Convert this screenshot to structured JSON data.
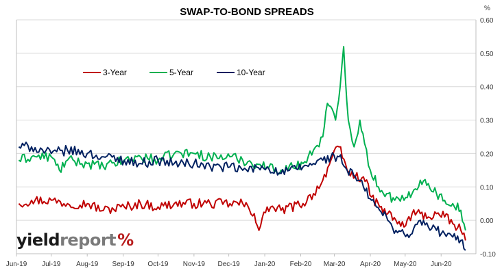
{
  "chart_data": {
    "type": "line",
    "title": "SWAP-TO-BOND SPREADS",
    "y_unit": "%",
    "ylim": [
      -0.1,
      0.6
    ],
    "y_ticks": [
      "0.60",
      "0.50",
      "0.40",
      "0.30",
      "0.20",
      "0.10",
      "0.00",
      "-0.10"
    ],
    "x_ticks": [
      "Jun-19",
      "Jul-19",
      "Aug-19",
      "Sep-19",
      "Oct-19",
      "Nov-19",
      "Dec-19",
      "Jan-20",
      "Feb-20",
      "Mar-20",
      "Apr-20",
      "May-20",
      "Jun-20"
    ],
    "x_dates": [
      "2019-06",
      "2019-07",
      "2019-08",
      "2019-09",
      "2019-10",
      "2019-11",
      "2019-12",
      "2020-01",
      "2020-02",
      "2020-03",
      "2020-04",
      "2020-05",
      "2020-06"
    ],
    "grid": "horizontal-major",
    "legend_position": "top-left",
    "series": [
      {
        "name": "3-Year",
        "color": "#c00000",
        "points": [
          [
            "2019-06-03",
            0.05
          ],
          [
            "2019-06-14",
            0.06
          ],
          [
            "2019-07-01",
            0.06
          ],
          [
            "2019-07-15",
            0.05
          ],
          [
            "2019-08-01",
            0.05
          ],
          [
            "2019-08-15",
            0.03
          ],
          [
            "2019-09-02",
            0.04
          ],
          [
            "2019-09-16",
            0.05
          ],
          [
            "2019-10-01",
            0.04
          ],
          [
            "2019-10-15",
            0.05
          ],
          [
            "2019-11-01",
            0.05
          ],
          [
            "2019-11-15",
            0.05
          ],
          [
            "2019-12-02",
            0.05
          ],
          [
            "2019-12-13",
            0.05
          ],
          [
            "2019-12-23",
            0.02
          ],
          [
            "2019-12-27",
            -0.03
          ],
          [
            "2020-01-03",
            0.04
          ],
          [
            "2020-01-15",
            0.03
          ],
          [
            "2020-02-03",
            0.05
          ],
          [
            "2020-02-12",
            0.08
          ],
          [
            "2020-02-20",
            0.12
          ],
          [
            "2020-02-27",
            0.18
          ],
          [
            "2020-03-05",
            0.22
          ],
          [
            "2020-03-12",
            0.15
          ],
          [
            "2020-03-19",
            0.13
          ],
          [
            "2020-03-26",
            0.13
          ],
          [
            "2020-04-02",
            0.07
          ],
          [
            "2020-04-09",
            0.04
          ],
          [
            "2020-04-16",
            0.02
          ],
          [
            "2020-04-23",
            0.0
          ],
          [
            "2020-04-30",
            -0.02
          ],
          [
            "2020-05-07",
            0.02
          ],
          [
            "2020-05-14",
            0.02
          ],
          [
            "2020-05-21",
            0.01
          ],
          [
            "2020-05-28",
            0.02
          ],
          [
            "2020-06-04",
            0.01
          ],
          [
            "2020-06-11",
            -0.01
          ],
          [
            "2020-06-18",
            -0.03
          ],
          [
            "2020-06-22",
            -0.06
          ]
        ]
      },
      {
        "name": "5-Year",
        "color": "#00b050",
        "points": [
          [
            "2019-06-03",
            0.18
          ],
          [
            "2019-06-14",
            0.19
          ],
          [
            "2019-07-01",
            0.19
          ],
          [
            "2019-07-08",
            0.15
          ],
          [
            "2019-07-15",
            0.18
          ],
          [
            "2019-08-01",
            0.17
          ],
          [
            "2019-08-15",
            0.16
          ],
          [
            "2019-09-02",
            0.18
          ],
          [
            "2019-09-16",
            0.19
          ],
          [
            "2019-10-01",
            0.18
          ],
          [
            "2019-10-15",
            0.2
          ],
          [
            "2019-11-01",
            0.2
          ],
          [
            "2019-11-15",
            0.19
          ],
          [
            "2019-12-02",
            0.19
          ],
          [
            "2019-12-13",
            0.18
          ],
          [
            "2020-01-03",
            0.16
          ],
          [
            "2020-01-15",
            0.15
          ],
          [
            "2020-02-03",
            0.17
          ],
          [
            "2020-02-12",
            0.21
          ],
          [
            "2020-02-20",
            0.25
          ],
          [
            "2020-02-24",
            0.35
          ],
          [
            "2020-03-02",
            0.3
          ],
          [
            "2020-03-06",
            0.4
          ],
          [
            "2020-03-09",
            0.52
          ],
          [
            "2020-03-13",
            0.3
          ],
          [
            "2020-03-18",
            0.22
          ],
          [
            "2020-03-23",
            0.3
          ],
          [
            "2020-03-27",
            0.23
          ],
          [
            "2020-04-01",
            0.15
          ],
          [
            "2020-04-08",
            0.1
          ],
          [
            "2020-04-15",
            0.08
          ],
          [
            "2020-04-22",
            0.06
          ],
          [
            "2020-04-30",
            0.06
          ],
          [
            "2020-05-07",
            0.08
          ],
          [
            "2020-05-14",
            0.12
          ],
          [
            "2020-05-21",
            0.11
          ],
          [
            "2020-05-28",
            0.08
          ],
          [
            "2020-06-04",
            0.06
          ],
          [
            "2020-06-11",
            0.05
          ],
          [
            "2020-06-18",
            0.03
          ],
          [
            "2020-06-22",
            -0.03
          ]
        ]
      },
      {
        "name": "10-Year",
        "color": "#002060",
        "points": [
          [
            "2019-06-03",
            0.22
          ],
          [
            "2019-06-14",
            0.22
          ],
          [
            "2019-07-01",
            0.2
          ],
          [
            "2019-07-15",
            0.21
          ],
          [
            "2019-08-01",
            0.2
          ],
          [
            "2019-08-15",
            0.19
          ],
          [
            "2019-09-02",
            0.18
          ],
          [
            "2019-09-16",
            0.17
          ],
          [
            "2019-10-01",
            0.18
          ],
          [
            "2019-10-15",
            0.17
          ],
          [
            "2019-11-01",
            0.17
          ],
          [
            "2019-11-15",
            0.16
          ],
          [
            "2019-12-02",
            0.16
          ],
          [
            "2019-12-13",
            0.15
          ],
          [
            "2020-01-03",
            0.16
          ],
          [
            "2020-01-15",
            0.14
          ],
          [
            "2020-02-03",
            0.16
          ],
          [
            "2020-02-12",
            0.17
          ],
          [
            "2020-02-20",
            0.18
          ],
          [
            "2020-02-27",
            0.19
          ],
          [
            "2020-03-05",
            0.19
          ],
          [
            "2020-03-12",
            0.15
          ],
          [
            "2020-03-19",
            0.13
          ],
          [
            "2020-03-26",
            0.1
          ],
          [
            "2020-04-02",
            0.06
          ],
          [
            "2020-04-09",
            0.03
          ],
          [
            "2020-04-16",
            0.0
          ],
          [
            "2020-04-23",
            -0.03
          ],
          [
            "2020-04-30",
            -0.04
          ],
          [
            "2020-05-07",
            -0.04
          ],
          [
            "2020-05-14",
            0.0
          ],
          [
            "2020-05-21",
            -0.02
          ],
          [
            "2020-05-28",
            -0.03
          ],
          [
            "2020-06-04",
            -0.04
          ],
          [
            "2020-06-11",
            -0.05
          ],
          [
            "2020-06-18",
            -0.06
          ],
          [
            "2020-06-22",
            -0.09
          ]
        ]
      }
    ]
  },
  "watermark": {
    "part1": "yield",
    "part2": "report",
    "part3": "%"
  }
}
